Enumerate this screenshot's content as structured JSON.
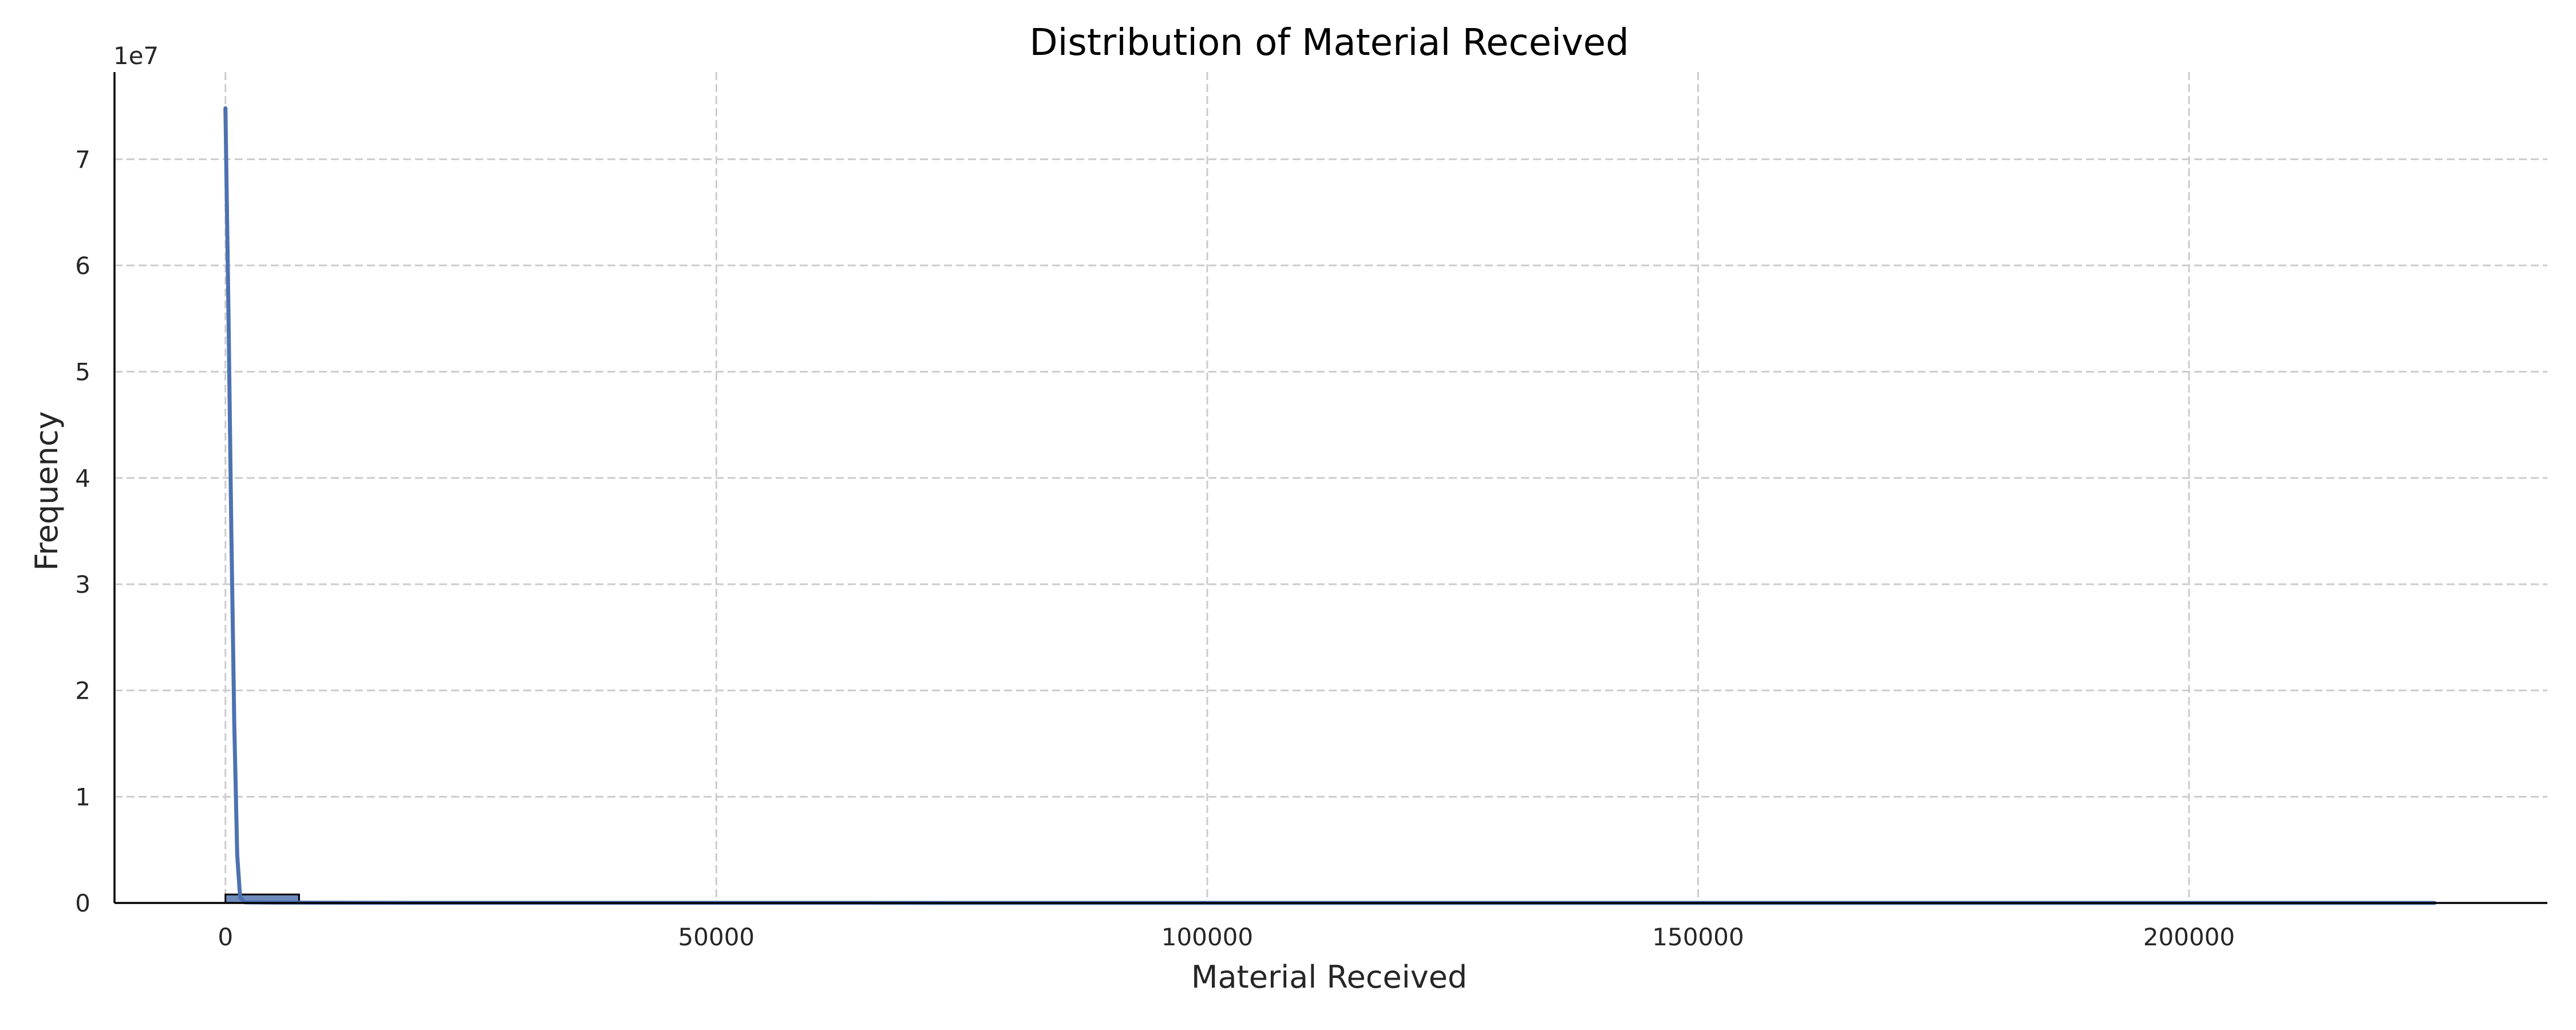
{
  "chart_data": {
    "type": "histogram",
    "title": "Distribution of Material Received",
    "xlabel": "Material Received",
    "ylabel": "Frequency",
    "y_offset_text": "1e7",
    "xlim": [
      -11300,
      236500
    ],
    "ylim": [
      0,
      78200000
    ],
    "x_ticks": [
      0,
      50000,
      100000,
      150000,
      200000
    ],
    "x_tick_labels": [
      "0",
      "50000",
      "100000",
      "150000",
      "200000"
    ],
    "y_ticks": [
      0,
      10000000,
      20000000,
      30000000,
      40000000,
      50000000,
      60000000,
      70000000
    ],
    "y_tick_labels": [
      "0",
      "1",
      "2",
      "3",
      "4",
      "5",
      "6",
      "7"
    ],
    "grid": true,
    "bins": [
      {
        "x0": 0,
        "x1": 7500,
        "count": 800000
      },
      {
        "x0": 7500,
        "x1": 225000,
        "count": 0
      }
    ],
    "kde_curve": {
      "x": [
        0,
        300,
        600,
        900,
        1200,
        1500,
        2000,
        5000,
        20000,
        60000,
        120000,
        225000
      ],
      "y": [
        74800000,
        56000000,
        35000000,
        17000000,
        4500000,
        500000,
        60000,
        30000,
        15000,
        10000,
        8000,
        5000
      ]
    },
    "colors": {
      "bar_fill": "#6f8bbd",
      "bar_edge": "#000000",
      "kde_line": "#4c72b0",
      "grid": "#cccccc"
    }
  }
}
